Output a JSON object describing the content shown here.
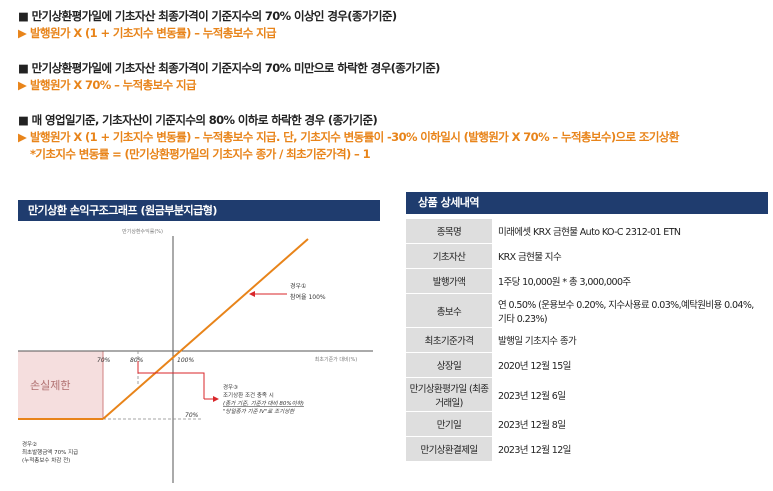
{
  "conditions": [
    {
      "condition": "■ 만기상환평가일에 기초자산 최종가격이 기준지수의 70% 이상인 경우(종가기준)",
      "result": "발행원가 X (1 + 기초지수 변동률) – 누적총보수 지급"
    },
    {
      "condition": "■ 만기상환평가일에 기초자산 최종가격이 기준지수의 70% 미만으로 하락한 경우(종가기준)",
      "result": "발행원가 X 70% – 누적총보수 지급"
    },
    {
      "condition": "■ 매 영업일기준, 기초자산이 기준지수의 80% 이하로 하락한 경우 (종가기준)",
      "result": "발행원가 X (1 + 기초지수 변동률) – 누적총보수 지급. 단, 기초지수 변동률이 -30% 이하일시 (발행원가 X 70% – 누적총보수)으로 조기상환",
      "note": "*기초지수 변동률 = (만기상환평가일의 기초지수 종가 / 최초기준가격) – 1"
    }
  ],
  "graph": {
    "title": "만기상환 손익구조그래프 (원금부분지급형)",
    "y_axis_label": "만기상환수익률(%)",
    "x_axis_label": "최초기준가 대비(%)",
    "tick_70": "70%",
    "tick_80": "80%",
    "tick_100": "100%",
    "tick_70_y": "70%",
    "loss_label": "손실제한",
    "case1": {
      "title": "경우①",
      "desc": "참여율 100%"
    },
    "case2": {
      "title": "경우②",
      "line1": "최초발행금액 70% 지급",
      "line2": "(누적총보수 차감 전)"
    },
    "case3": {
      "title": "경우③",
      "line1": "조기상환 조건 충족 시",
      "line2": "(종가 기준, 기준가 대비 80%이하)",
      "line3": "\"당일종가 기준 IV\"로 조기상환"
    }
  },
  "product": {
    "title": "상품 상세내역",
    "rows": [
      {
        "label": "종목명",
        "value": "미래에셋 KRX 금현물 Auto KO-C 2312-01 ETN"
      },
      {
        "label": "기초자산",
        "value": "KRX 금현물 지수"
      },
      {
        "label": "발행가액",
        "value": "1주당 10,000원 * 총 3,000,000주"
      },
      {
        "label": "총보수",
        "value": "연 0.50% (운용보수 0.20%, 지수사용료 0.03%,예탁원비용 0.04%, 기타 0.23%)"
      },
      {
        "label": "최초기준가격",
        "value": "발행일 기초지수 종가"
      },
      {
        "label": "상장일",
        "value": "2020년 12월 15일"
      },
      {
        "label": "만기상환평가일 (최종거래일)",
        "value": "2023년 12월 6일"
      },
      {
        "label": "만기일",
        "value": "2023년 12월 8일"
      },
      {
        "label": "만기상환결제일",
        "value": "2023년 12월 12일"
      }
    ]
  },
  "colors": {
    "accent_orange": "#e8841a",
    "header_navy": "#1f3c6e",
    "loss_fill": "#f5dede",
    "arrow_red": "#d9262a"
  }
}
